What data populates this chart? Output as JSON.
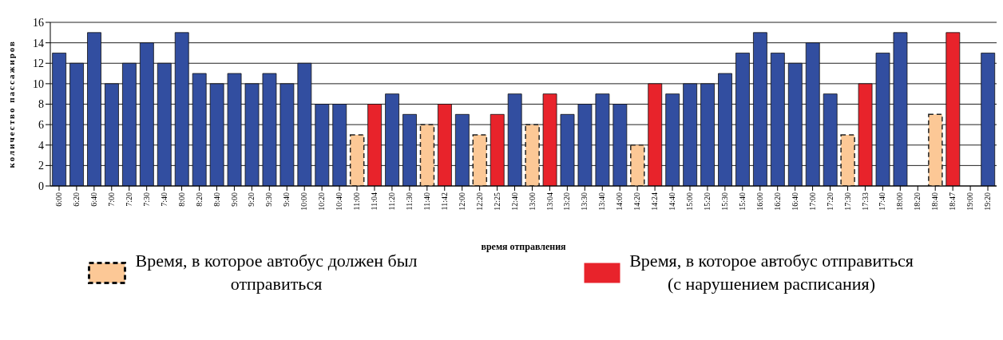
{
  "chart_data": {
    "type": "bar",
    "stacked": true,
    "xlabel": "время отправления",
    "ylabel": "количество пассажиров",
    "categories": [
      "6:00",
      "6:20",
      "6:40",
      "7:00",
      "7:20",
      "7:30",
      "7:40",
      "8:00",
      "8:20",
      "8:40",
      "9:00",
      "9:20",
      "9:30",
      "9:40",
      "10:00",
      "10:20",
      "10:40",
      "11:00",
      "11:04",
      "11:20",
      "11:30",
      "11:40",
      "11:42",
      "12:00",
      "12:20",
      "12:25",
      "12:40",
      "13:00",
      "13:04",
      "13:20",
      "13:30",
      "13:40",
      "14:00",
      "14:20",
      "14:24",
      "14:40",
      "15:00",
      "15:20",
      "15:30",
      "15:40",
      "16:00",
      "16:20",
      "16:40",
      "17:00",
      "17:20",
      "17:30",
      "17:33",
      "17:40",
      "18:00",
      "18:20",
      "18:40",
      "18:47",
      "19:00",
      "19:20"
    ],
    "series": [
      {
        "color": "#324ea0",
        "values": [
          13,
          12,
          15,
          10,
          12,
          14,
          12,
          15,
          11,
          10,
          11,
          10,
          11,
          10,
          12,
          8,
          8,
          null,
          null,
          9,
          7,
          null,
          null,
          7,
          null,
          null,
          9,
          null,
          null,
          7,
          8,
          9,
          8,
          null,
          null,
          9,
          10,
          10,
          11,
          13,
          15,
          13,
          12,
          14,
          9,
          null,
          null,
          13,
          15,
          null,
          null,
          null,
          null,
          13
        ]
      },
      {
        "name": "Время, в которое автобус должен был отправиться",
        "color": "#fcc896",
        "line_style": "dashed",
        "values": [
          null,
          null,
          null,
          null,
          null,
          null,
          null,
          null,
          null,
          null,
          null,
          null,
          null,
          null,
          null,
          null,
          null,
          5,
          null,
          null,
          null,
          6,
          null,
          null,
          5,
          null,
          null,
          6,
          null,
          null,
          null,
          null,
          null,
          4,
          null,
          null,
          null,
          null,
          null,
          null,
          null,
          null,
          null,
          null,
          null,
          5,
          null,
          null,
          null,
          null,
          7,
          null,
          null,
          null
        ]
      },
      {
        "name": "Время, в которое автобус отправиться (с нарушением расписания)",
        "color": "#e8232b",
        "values": [
          null,
          null,
          null,
          null,
          null,
          null,
          null,
          null,
          null,
          null,
          null,
          null,
          null,
          null,
          null,
          null,
          null,
          null,
          8,
          null,
          null,
          null,
          8,
          null,
          null,
          7,
          null,
          null,
          9,
          null,
          null,
          null,
          null,
          null,
          10,
          null,
          null,
          null,
          null,
          null,
          null,
          null,
          null,
          null,
          null,
          null,
          10,
          null,
          null,
          null,
          null,
          15,
          null,
          null
        ]
      }
    ],
    "ylim": [
      0,
      16
    ],
    "yticks": [
      0,
      2,
      4,
      6,
      8,
      10,
      12,
      14,
      16
    ],
    "grid": "y",
    "legend": "bottom"
  }
}
